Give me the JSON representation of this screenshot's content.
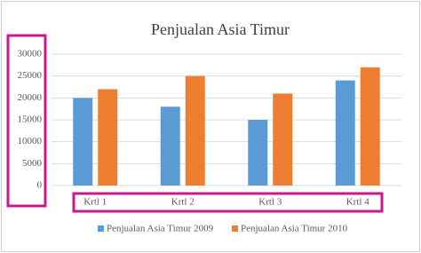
{
  "chart_data": {
    "type": "bar",
    "title": "Penjualan Asia Timur",
    "categories": [
      "Krtl 1",
      "Krtl 2",
      "Krtl 3",
      "Krtl 4"
    ],
    "series": [
      {
        "name": "Penjualan Asia Timur 2009",
        "color": "#5b9bd5",
        "values": [
          20000,
          18000,
          15000,
          24000
        ]
      },
      {
        "name": "Penjualan Asia Timur 2010",
        "color": "#ed7d31",
        "values": [
          22000,
          25000,
          21000,
          27000
        ]
      }
    ],
    "ylim": [
      0,
      30000
    ],
    "yticks": [
      0,
      5000,
      10000,
      15000,
      20000,
      25000,
      30000
    ],
    "grid": true,
    "legend": "bottom"
  }
}
